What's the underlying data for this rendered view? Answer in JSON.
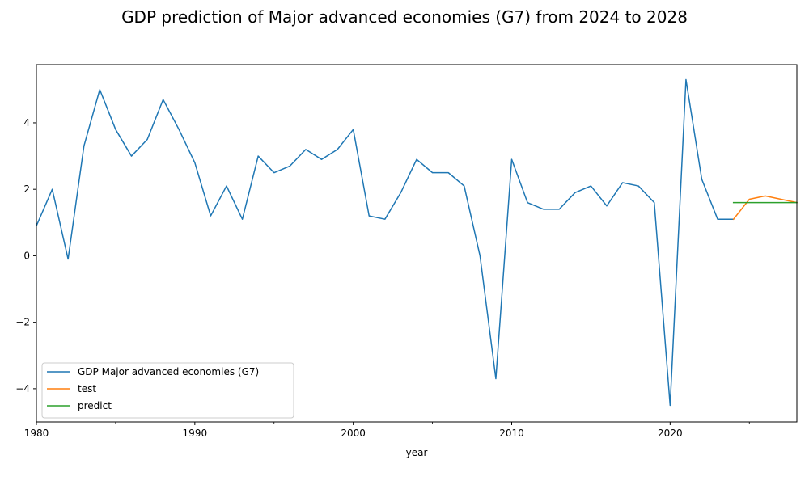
{
  "chart_data": {
    "type": "line",
    "title": "GDP prediction of Major advanced economies (G7) from 2024 to 2028",
    "xlabel": "year",
    "ylabel": "",
    "xlim": [
      1980,
      2028
    ],
    "ylim": [
      -5,
      5.75
    ],
    "x_ticks": [
      1980,
      1990,
      2000,
      2010,
      2020
    ],
    "x_tick_labels": [
      "1980",
      "1990",
      "2000",
      "2010",
      "2020"
    ],
    "x_minor_ticks": [
      1985,
      1995,
      2005,
      2015,
      2025
    ],
    "y_ticks": [
      -4,
      -2,
      0,
      2,
      4
    ],
    "y_tick_labels": [
      "−4",
      "−2",
      "0",
      "2",
      "4"
    ],
    "grid": false,
    "legend_position": "lower-left",
    "series": [
      {
        "name": "GDP Major advanced economies (G7)",
        "color": "#1f77b4",
        "x": [
          1980,
          1981,
          1982,
          1983,
          1984,
          1985,
          1986,
          1987,
          1988,
          1989,
          1990,
          1991,
          1992,
          1993,
          1994,
          1995,
          1996,
          1997,
          1998,
          1999,
          2000,
          2001,
          2002,
          2003,
          2004,
          2005,
          2006,
          2007,
          2008,
          2009,
          2010,
          2011,
          2012,
          2013,
          2014,
          2015,
          2016,
          2017,
          2018,
          2019,
          2020,
          2021,
          2022,
          2023,
          2024
        ],
        "values": [
          0.9,
          2.0,
          -0.1,
          3.3,
          5.0,
          3.8,
          3.0,
          3.5,
          4.7,
          3.8,
          2.8,
          1.2,
          2.1,
          1.1,
          3.0,
          2.5,
          2.7,
          3.2,
          2.9,
          3.2,
          3.8,
          1.2,
          1.1,
          1.9,
          2.9,
          2.5,
          2.5,
          2.1,
          0.0,
          -3.7,
          2.9,
          1.6,
          1.4,
          1.4,
          1.9,
          2.1,
          1.5,
          2.2,
          2.1,
          1.6,
          -4.5,
          5.3,
          2.3,
          1.1,
          1.1
        ]
      },
      {
        "name": "test",
        "color": "#ff7f0e",
        "x": [
          2024,
          2025,
          2026,
          2027,
          2028
        ],
        "values": [
          1.1,
          1.7,
          1.8,
          1.7,
          1.6
        ]
      },
      {
        "name": "predict",
        "color": "#2ca02c",
        "x": [
          2024,
          2025,
          2026,
          2027,
          2028
        ],
        "values": [
          1.6,
          1.6,
          1.6,
          1.6,
          1.6
        ]
      }
    ]
  }
}
